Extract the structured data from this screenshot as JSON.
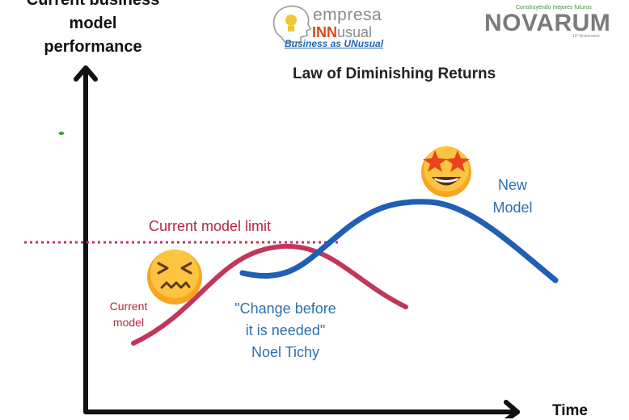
{
  "y_axis_label": [
    "Current business",
    "model",
    "performance"
  ],
  "x_axis_label": "Time",
  "title": "Law of Diminishing Returns",
  "limit_label": "Current model limit",
  "current_model_label": [
    "Current",
    "model"
  ],
  "new_model_label": [
    "New",
    "Model"
  ],
  "quote_lines": [
    "\"Change before",
    "it is needed\"",
    "Noel Tichy"
  ],
  "brand_empresa": {
    "word1": "empresa",
    "word2_bold": "INN",
    "word2_rest": "usual",
    "tagline": "Business as UNusual"
  },
  "brand_novarum": {
    "name": "NOVARUM",
    "tagline": "Construyendo mejores futuros",
    "anniversary": "10° Aniversario"
  },
  "colors": {
    "current_curve": "#c0375a",
    "new_curve": "#1f5fb5",
    "limit_line": "#c0375a",
    "axis": "#111111"
  },
  "icons": {
    "current_model": "confounded-face-emoji",
    "new_model": "star-struck-face-emoji"
  }
}
